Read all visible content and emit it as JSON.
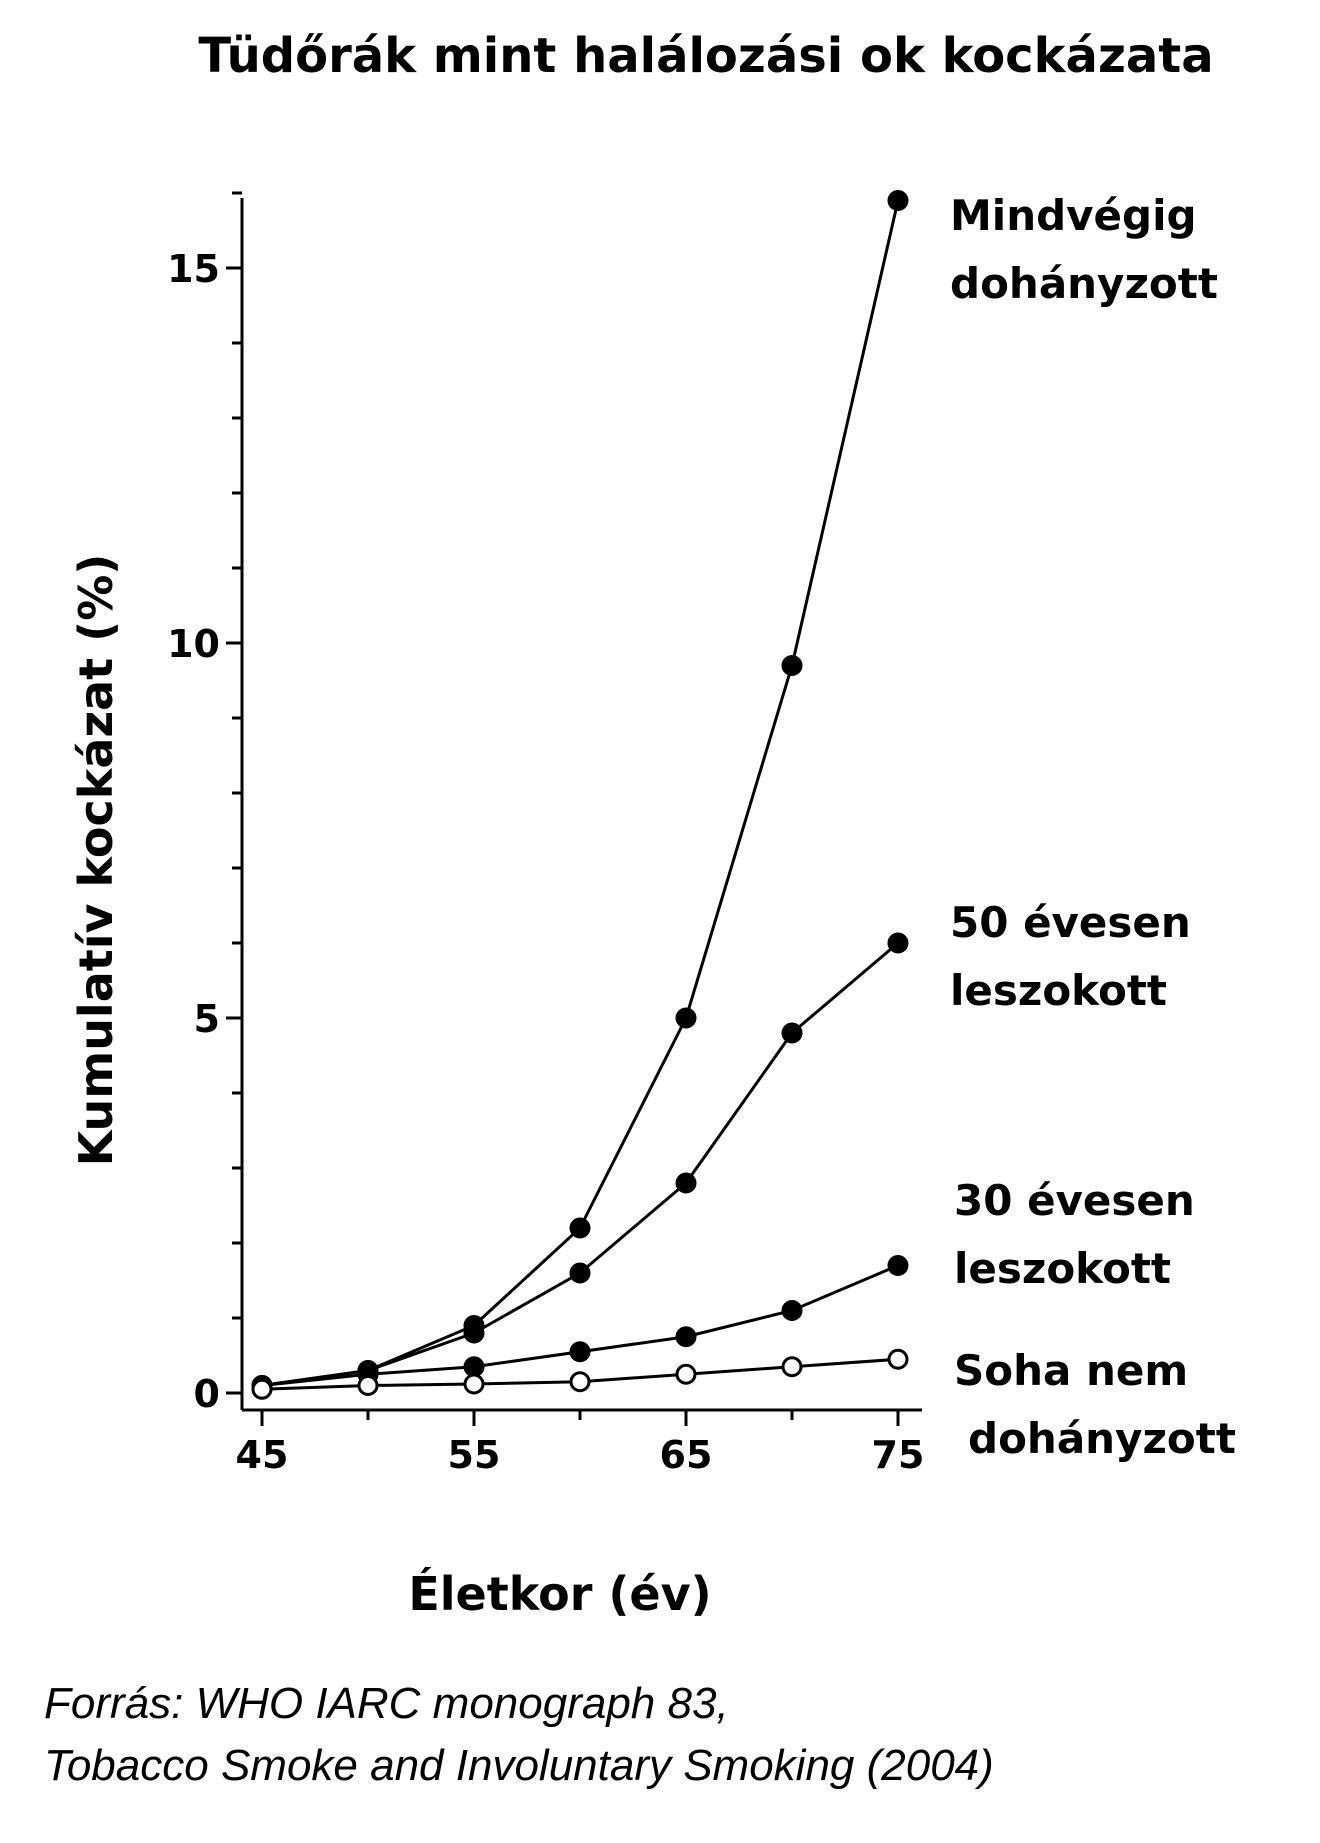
{
  "chart_data": {
    "type": "line",
    "title": "Tüdőrák mint halálozási ok kockázata",
    "xlabel": "Életkor (év)",
    "ylabel": "Kumulatív kockázat (%)",
    "xlim": [
      45,
      75
    ],
    "ylim": [
      0,
      16
    ],
    "x_ticks": [
      "45",
      "55",
      "65",
      "75"
    ],
    "y_ticks": [
      "0",
      "5",
      "10",
      "15"
    ],
    "x": [
      45,
      50,
      55,
      60,
      65,
      70,
      75
    ],
    "series": [
      {
        "name_lines": [
          "Mindvégig",
          "dohányzott"
        ],
        "marker": "filled",
        "values": [
          0.1,
          0.3,
          0.9,
          2.2,
          5.0,
          9.7,
          15.9
        ]
      },
      {
        "name_lines": [
          "50 évesen",
          "leszokott"
        ],
        "marker": "filled",
        "values": [
          0.1,
          0.3,
          0.8,
          1.6,
          2.8,
          4.8,
          6.0
        ]
      },
      {
        "name_lines": [
          "30 évesen",
          "leszokott"
        ],
        "marker": "filled",
        "values": [
          0.1,
          0.25,
          0.35,
          0.55,
          0.75,
          1.1,
          1.7
        ]
      },
      {
        "name_lines": [
          "Soha nem",
          "dohányzott"
        ],
        "marker": "open",
        "values": [
          0.05,
          0.1,
          0.12,
          0.15,
          0.25,
          0.35,
          0.45
        ]
      }
    ],
    "grid": false,
    "legend": "labels at right end of each line"
  },
  "source": {
    "line1": "Forrás: WHO IARC monograph 83,",
    "line2": "Tobacco Smoke and Involuntary Smoking (2004)"
  }
}
